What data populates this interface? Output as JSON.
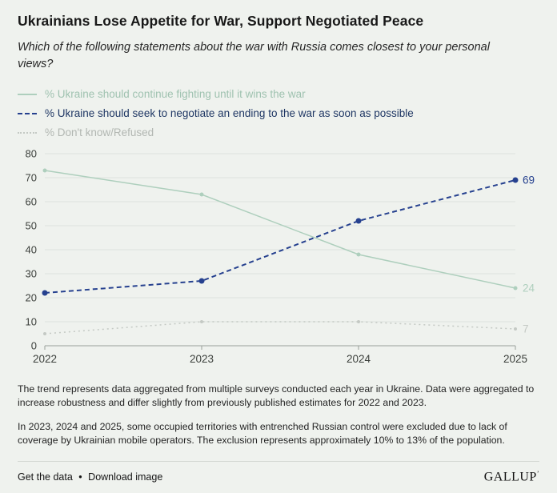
{
  "header": {
    "title": "Ukrainians Lose Appetite for War, Support Negotiated Peace",
    "subtitle": "Which of the following statements about the war with Russia comes closest to your personal views?"
  },
  "chart_data": {
    "type": "line",
    "x": [
      "2022",
      "2023",
      "2024",
      "2025"
    ],
    "series": [
      {
        "name": "% Ukraine should continue fighting until it wins the war",
        "values": [
          73,
          63,
          38,
          24
        ],
        "end_label": "24",
        "color": "#aecfbd",
        "legend_text_color": "#9fc2b0",
        "style": "solid"
      },
      {
        "name": "% Ukraine should seek to negotiate an ending to the war as soon as possible",
        "values": [
          22,
          27,
          52,
          69
        ],
        "end_label": "69",
        "color": "#26418f",
        "legend_text_color": "#1f3764",
        "style": "dashed"
      },
      {
        "name": "% Don't know/Refused",
        "values": [
          5,
          10,
          10,
          7
        ],
        "end_label": "7",
        "color": "#c4c9c4",
        "legend_text_color": "#b2b7b2",
        "style": "dotted"
      }
    ],
    "title": "Ukrainians Lose Appetite for War, Support Negotiated Peace",
    "xlabel": "",
    "ylabel": "",
    "ylim": [
      0,
      80
    ],
    "yticks": [
      0,
      10,
      20,
      30,
      40,
      50,
      60,
      70,
      80
    ],
    "grid": true,
    "legend_position": "top-left"
  },
  "colors": {
    "background": "#eff2ee",
    "gridline": "#dde2dd",
    "baseline": "#9aa09a",
    "axis_text": "#3c403c"
  },
  "footnotes": [
    "The trend represents data aggregated from multiple surveys conducted each year in Ukraine. Data were aggregated to increase robustness and differ slightly from previously published estimates for 2022 and 2023.",
    "In 2023, 2024 and 2025, some occupied territories with entrenched Russian control were excluded due to lack of coverage by Ukrainian mobile operators. The exclusion represents approximately 10% to 13% of the population."
  ],
  "footer": {
    "get_data": "Get the data",
    "separator": "•",
    "download": "Download image",
    "brand": "GALLUP",
    "brand_mark": "’"
  }
}
